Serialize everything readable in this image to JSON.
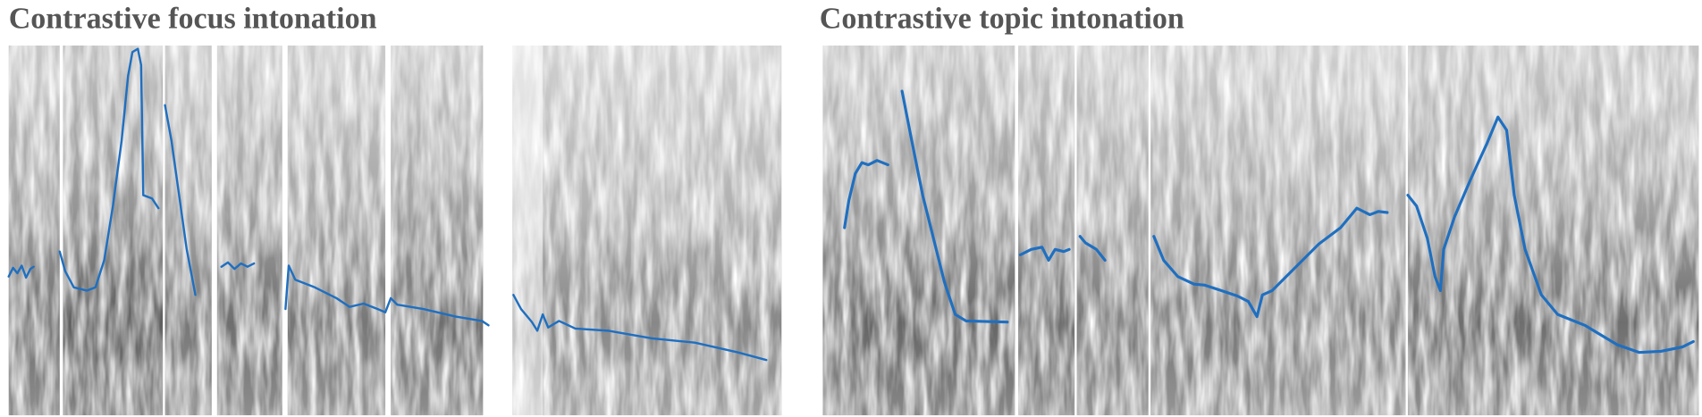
{
  "panels": [
    {
      "title": "Contrastive focus intonation"
    },
    {
      "title": "Contrastive topic intonation"
    }
  ]
}
